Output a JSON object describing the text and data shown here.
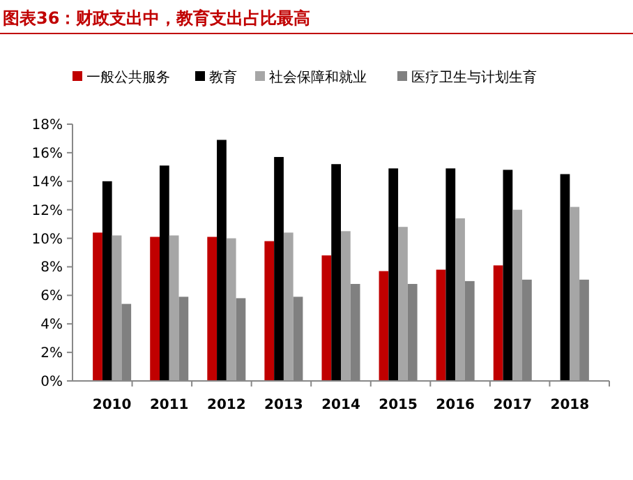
{
  "chart_data": {
    "type": "bar",
    "title": "图表36：财政支出中，教育支出占比最高",
    "categories": [
      "2010",
      "2011",
      "2012",
      "2013",
      "2014",
      "2015",
      "2016",
      "2017",
      "2018"
    ],
    "series": [
      {
        "name": "一般公共服务",
        "color": "#c00000",
        "values": [
          10.4,
          10.1,
          10.1,
          9.8,
          8.8,
          7.7,
          7.8,
          8.1,
          null
        ]
      },
      {
        "name": "教育",
        "color": "#000000",
        "values": [
          14.0,
          15.1,
          16.9,
          15.7,
          15.2,
          14.9,
          14.9,
          14.8,
          14.5
        ]
      },
      {
        "name": "社会保障和就业",
        "color": "#a6a6a6",
        "values": [
          10.2,
          10.2,
          10.0,
          10.4,
          10.5,
          10.8,
          11.4,
          12.0,
          12.2
        ]
      },
      {
        "name": "医疗卫生与计划生育",
        "color": "#808080",
        "values": [
          5.4,
          5.9,
          5.8,
          5.9,
          6.8,
          6.8,
          7.0,
          7.1,
          7.1
        ]
      }
    ],
    "ylim": [
      0,
      18
    ],
    "yticks": [
      {
        "value": 0,
        "label": "0%"
      },
      {
        "value": 2,
        "label": "2%"
      },
      {
        "value": 4,
        "label": "4%"
      },
      {
        "value": 6,
        "label": "6%"
      },
      {
        "value": 8,
        "label": "8%"
      },
      {
        "value": 10,
        "label": "10%"
      },
      {
        "value": 12,
        "label": "12%"
      },
      {
        "value": 14,
        "label": "14%"
      },
      {
        "value": 16,
        "label": "16%"
      },
      {
        "value": 18,
        "label": "18%"
      }
    ],
    "grid": false,
    "legend": "top"
  }
}
